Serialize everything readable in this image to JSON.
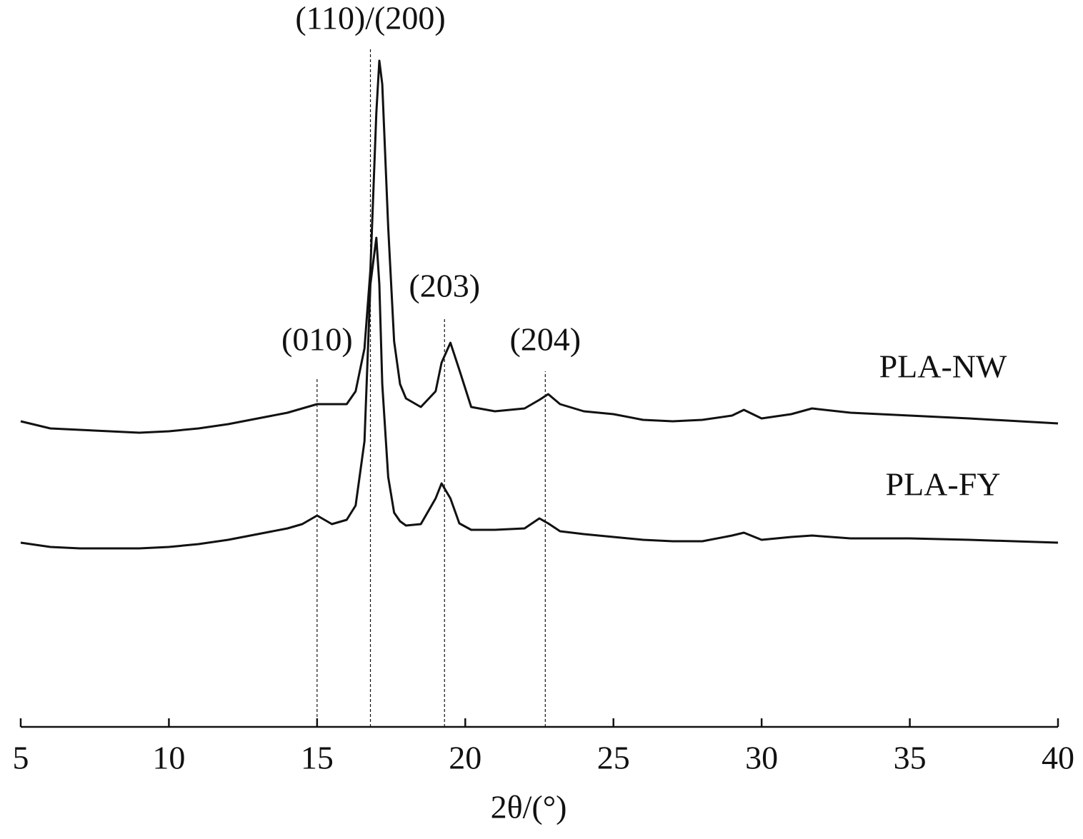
{
  "chart_data": {
    "type": "line",
    "xlabel": "2θ/(°)",
    "x": [
      5,
      6,
      7,
      8,
      9,
      10,
      11,
      12,
      13,
      14,
      14.5,
      15,
      15.5,
      16,
      16.3,
      16.6,
      16.8,
      17,
      17.1,
      17.2,
      17.4,
      17.6,
      17.8,
      18,
      18.5,
      19,
      19.2,
      19.5,
      19.8,
      20.2,
      21,
      22,
      22.5,
      22.8,
      23.2,
      24,
      25,
      26,
      27,
      28,
      29,
      29.4,
      30,
      31,
      31.7,
      33,
      35,
      37,
      40
    ],
    "series": [
      {
        "name": "PLA-NW",
        "color": "#111111",
        "values": [
          428,
          418,
          416,
          414,
          412,
          414,
          418,
          424,
          432,
          440,
          446,
          452,
          452,
          452,
          470,
          530,
          640,
          860,
          933,
          900,
          700,
          540,
          480,
          460,
          448,
          470,
          510,
          538,
          500,
          448,
          442,
          446,
          458,
          466,
          452,
          442,
          438,
          430,
          428,
          430,
          436,
          444,
          432,
          438,
          446,
          440,
          436,
          432,
          425
        ]
      },
      {
        "name": "PLA-FY",
        "color": "#111111",
        "values": [
          258,
          252,
          250,
          250,
          250,
          252,
          256,
          262,
          270,
          278,
          284,
          296,
          284,
          290,
          310,
          400,
          620,
          685,
          620,
          480,
          350,
          300,
          288,
          282,
          284,
          320,
          341,
          320,
          285,
          276,
          276,
          278,
          292,
          285,
          274,
          270,
          266,
          262,
          260,
          260,
          268,
          272,
          262,
          266,
          268,
          264,
          264,
          262,
          258
        ]
      }
    ],
    "annotations": [
      {
        "text": "(010)",
        "x": 15
      },
      {
        "text": "(110)/(200)",
        "x": 16.8
      },
      {
        "text": "(203)",
        "x": 19.3
      },
      {
        "text": "(204)",
        "x": 22.7
      }
    ],
    "xlim": [
      5,
      40
    ],
    "xticks": [
      5,
      10,
      15,
      20,
      25,
      30,
      35,
      40
    ],
    "ylim": [
      0,
      1000
    ]
  }
}
